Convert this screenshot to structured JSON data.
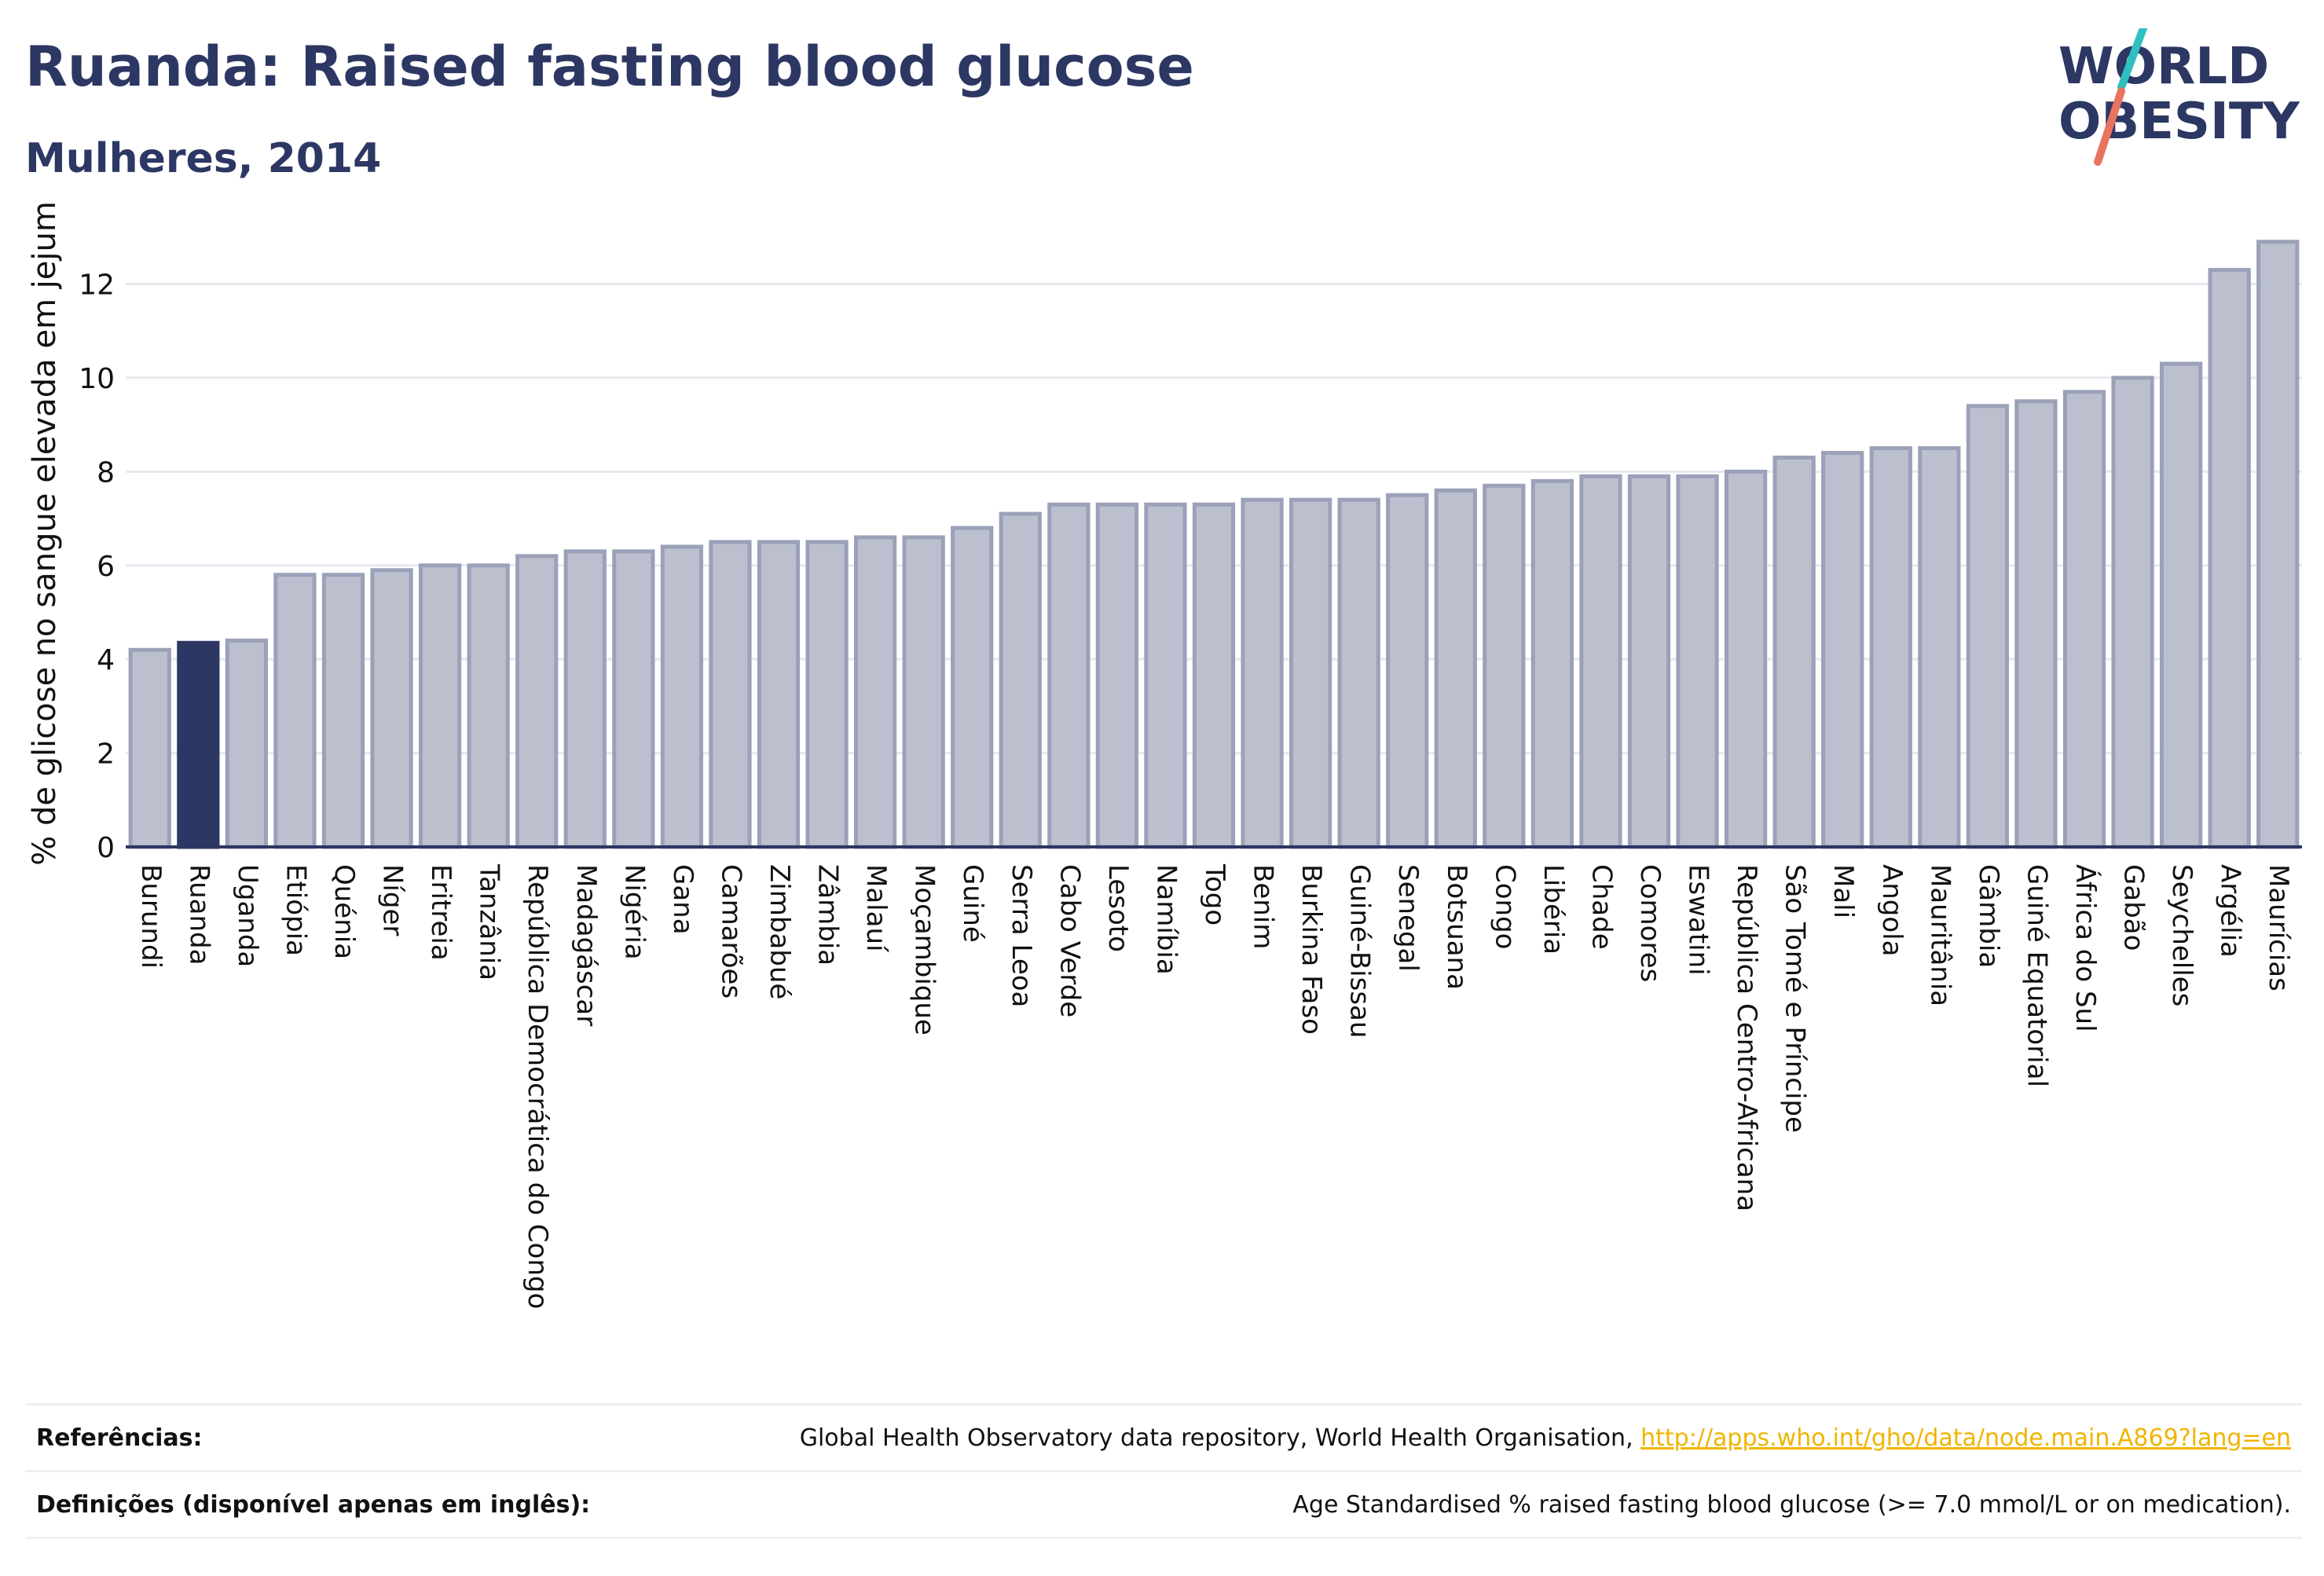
{
  "header": {
    "title": "Ruanda: Raised fasting blood glucose",
    "subtitle": "Mulheres, 2014"
  },
  "logo": {
    "line1": "WORLD",
    "line2": "OBESITY",
    "icon": "world-obesity-logo"
  },
  "colors": {
    "highlight": "#2d3763",
    "bar_fill": "#bcc0ce",
    "bar_stroke": "#9aa1b8",
    "grid": "#e6e8ef",
    "link": "#f0b400"
  },
  "chart_data": {
    "type": "bar",
    "title": "Ruanda: Raised fasting blood glucose",
    "subtitle": "Mulheres, 2014",
    "xlabel": "",
    "ylabel": "% de glicose no sangue elevada em jejum",
    "ylim": [
      0,
      13.7
    ],
    "yticks": [
      0,
      2,
      4,
      6,
      8,
      10,
      12
    ],
    "grid": true,
    "highlight": "Ruanda",
    "categories": [
      "Burundi",
      "Ruanda",
      "Uganda",
      "Etiópia",
      "Quénia",
      "Níger",
      "Eritreia",
      "Tanzânia",
      "República Democrática do Congo",
      "Madagáscar",
      "Nigéria",
      "Gana",
      "Camarões",
      "Zimbabué",
      "Zâmbia",
      "Malauí",
      "Moçambique",
      "Guiné",
      "Serra Leoa",
      "Cabo Verde",
      "Lesoto",
      "Namíbia",
      "Togo",
      "Benim",
      "Burkina Faso",
      "Guiné-Bissau",
      "Senegal",
      "Botsuana",
      "Congo",
      "Libéria",
      "Chade",
      "Comores",
      "Eswatini",
      "República Centro-Africana",
      "São Tomé e Príncipe",
      "Mali",
      "Angola",
      "Mauritânia",
      "Gâmbia",
      "Guiné Equatorial",
      "África do Sul",
      "Gabão",
      "Seychelles",
      "Argélia",
      "Maurícias"
    ],
    "values": [
      4.2,
      4.35,
      4.4,
      5.8,
      5.8,
      5.9,
      6.0,
      6.0,
      6.2,
      6.3,
      6.3,
      6.4,
      6.5,
      6.5,
      6.5,
      6.6,
      6.6,
      6.8,
      7.1,
      7.3,
      7.3,
      7.3,
      7.3,
      7.4,
      7.4,
      7.4,
      7.5,
      7.6,
      7.7,
      7.8,
      7.9,
      7.9,
      7.9,
      8.0,
      8.3,
      8.4,
      8.5,
      8.5,
      9.4,
      9.5,
      9.7,
      10.0,
      10.3,
      12.3,
      12.9
    ]
  },
  "footer": {
    "references_label": "Referências:",
    "references_text": "Global Health Observatory data repository, World Health Organisation, ",
    "references_link": "http://apps.who.int/gho/data/node.main.A869?lang=en",
    "definitions_label": "Definições (disponível apenas em inglês):",
    "definitions_text": "Age Standardised % raised fasting blood glucose (>= 7.0 mmol/L or on medication)."
  }
}
